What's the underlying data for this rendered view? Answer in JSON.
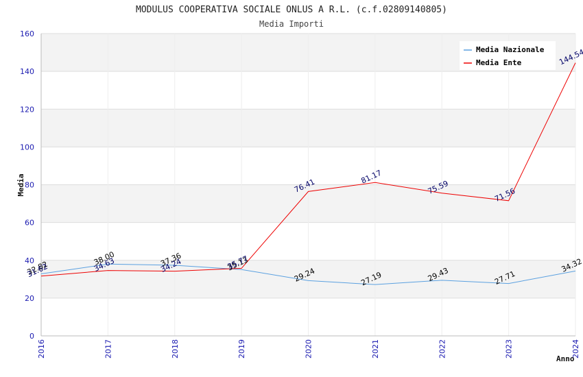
{
  "chart_data": {
    "type": "line",
    "title": "MODULUS COOPERATIVA SOCIALE ONLUS A R.L. (c.f.02809140805)",
    "subtitle": "Media Importi",
    "xlabel": "Anno",
    "ylabel": "Media",
    "x": [
      "2016",
      "2017",
      "2018",
      "2019",
      "2020",
      "2021",
      "2022",
      "2023",
      "2024"
    ],
    "ylim": [
      0,
      160
    ],
    "yticks": [
      "0",
      "20",
      "40",
      "60",
      "80",
      "100",
      "120",
      "140",
      "160"
    ],
    "grid": true,
    "legend_position": "top-right",
    "series": [
      {
        "name": "Media Nazionale",
        "color": "#5aa0e0",
        "label_color": "#000000",
        "values": [
          32.82,
          38.0,
          37.36,
          35.13,
          29.24,
          27.19,
          29.43,
          27.71,
          34.32
        ],
        "labels": [
          "32.82",
          "38.00",
          "37.36",
          "35.13",
          "29.24",
          "27.19",
          "29.43",
          "27.71",
          "34.32"
        ]
      },
      {
        "name": "Media Ente",
        "color": "#ee0000",
        "label_color": "#000066",
        "values": [
          31.62,
          34.63,
          34.24,
          35.77,
          76.41,
          81.17,
          75.59,
          71.56,
          144.54
        ],
        "labels": [
          "31.62",
          "34.63",
          "34.24",
          "35.77",
          "76.41",
          "81.17",
          "75.59",
          "71.56",
          "144.54"
        ]
      }
    ]
  }
}
